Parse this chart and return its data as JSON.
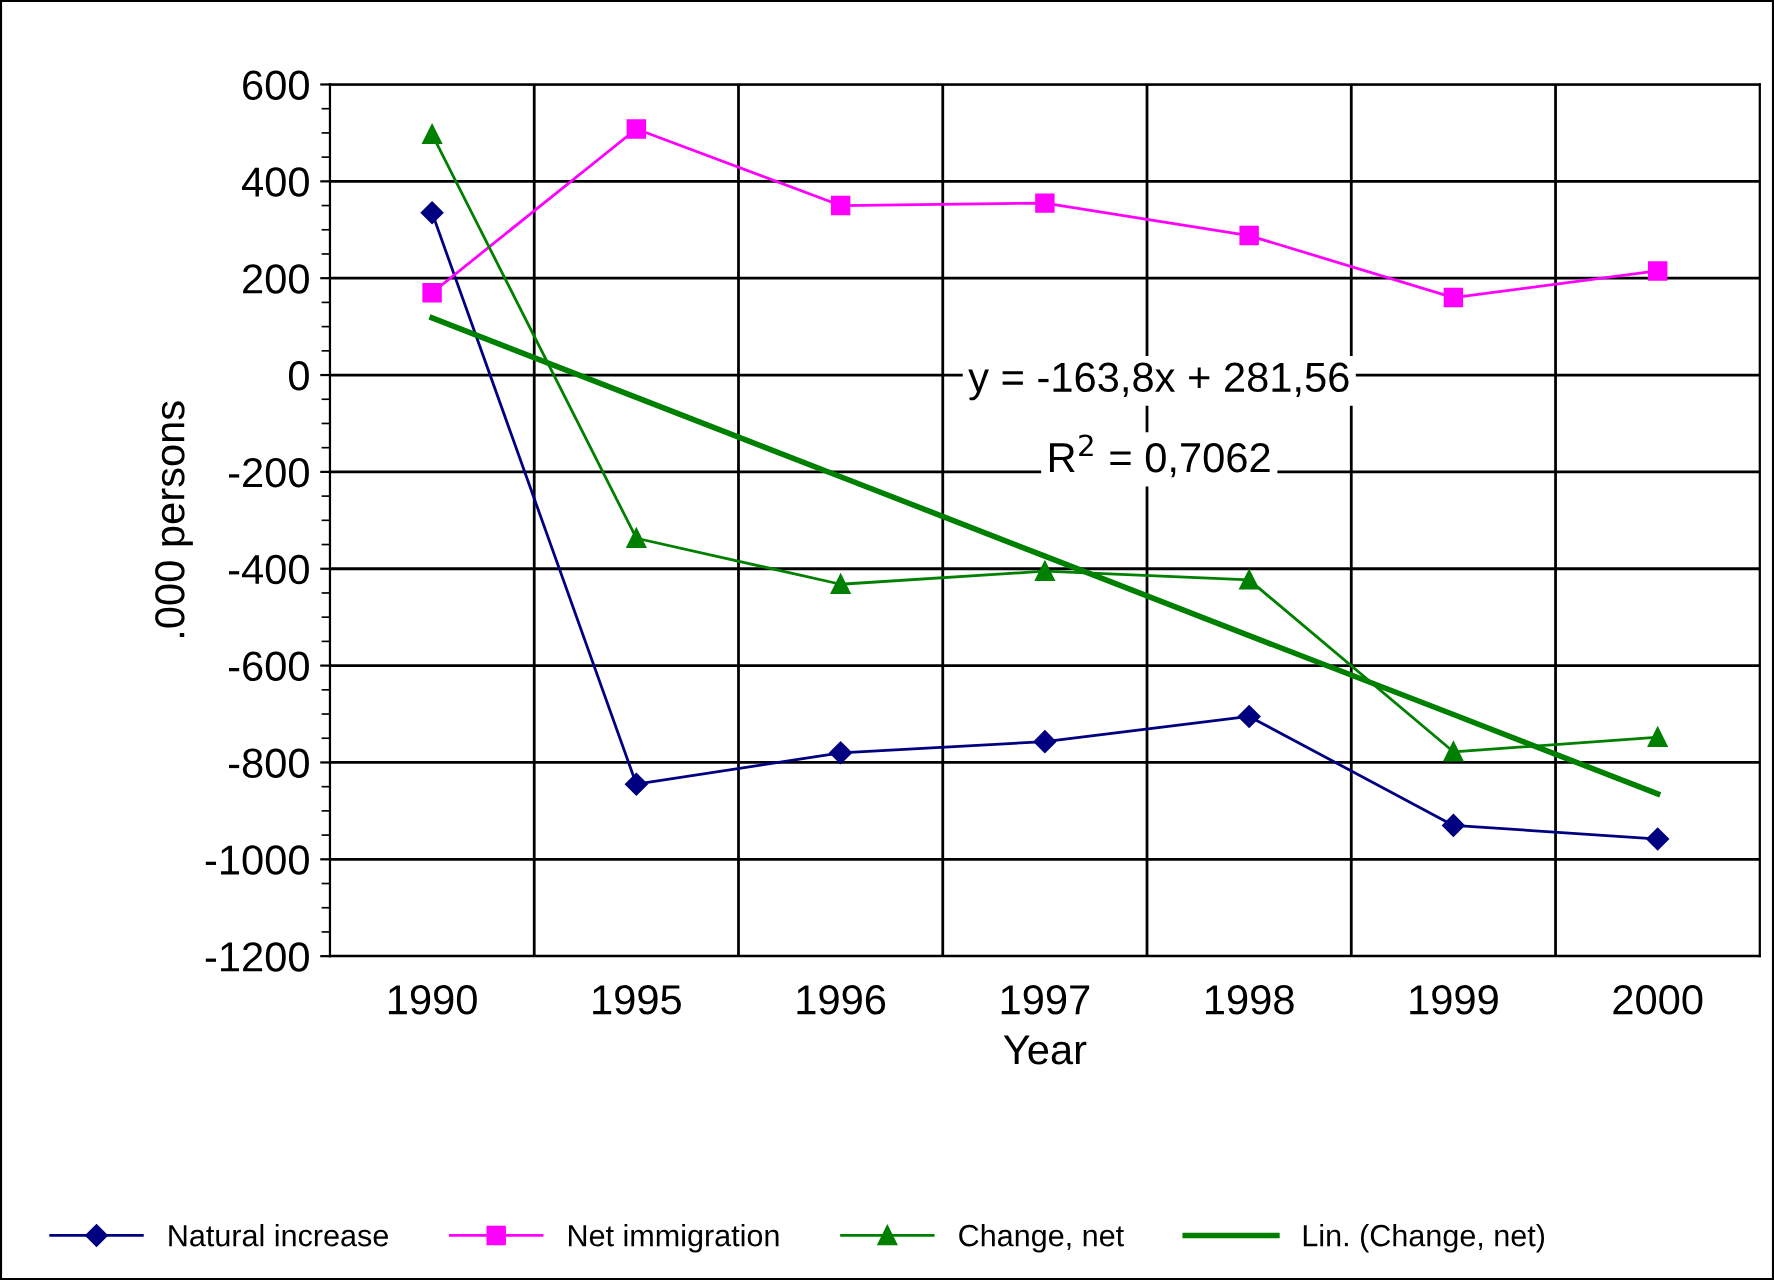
{
  "chart_data": {
    "type": "line",
    "xlabel": "Year",
    "ylabel": ".000 persons",
    "categories": [
      "1990",
      "1995",
      "1996",
      "1997",
      "1998",
      "1999",
      "2000"
    ],
    "series": [
      {
        "name": "Natural increase",
        "color": "#000080",
        "marker": "diamond",
        "values": [
          335,
          -845,
          -780,
          -757,
          -705,
          -930,
          -958
        ]
      },
      {
        "name": "Net immigration",
        "color": "#ff00ff",
        "marker": "square",
        "values": [
          170,
          508,
          350,
          355,
          288,
          160,
          215
        ]
      },
      {
        "name": "Change, net",
        "color": "#008000",
        "marker": "triangle",
        "values": [
          497,
          -337,
          -432,
          -405,
          -423,
          -778,
          -748
        ]
      },
      {
        "name": "Lin. (Change, net)",
        "color": "#008000",
        "marker": "none",
        "values": [
          118,
          -46,
          -210,
          -374,
          -538,
          -701,
          -865
        ]
      }
    ],
    "ylim": [
      -1200,
      600
    ],
    "yticks": [
      -1200,
      -1000,
      -800,
      -600,
      -400,
      -200,
      0,
      200,
      400,
      600
    ],
    "grid": true,
    "legend": "bottom",
    "annotations": [
      "y = -163,8x + 281,56",
      "R$^{2}$ = 0,7062"
    ]
  }
}
